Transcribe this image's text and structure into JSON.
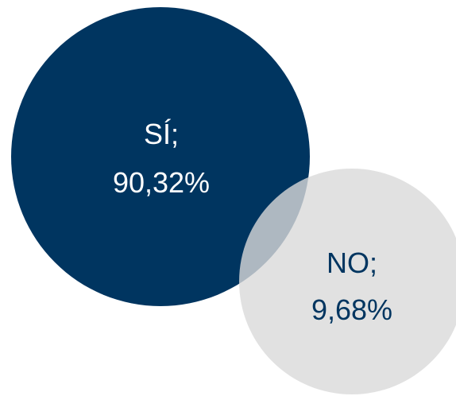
{
  "chart_data": {
    "type": "bubble",
    "title": "",
    "series": [
      {
        "name": "SÍ",
        "value_label": "90,32%",
        "value": 90.32,
        "color": "#003560",
        "text_color": "#ffffff",
        "opacity": 1
      },
      {
        "name": "NO",
        "value_label": "9,68%",
        "value": 9.68,
        "color": "#d9d9d9",
        "text_color": "#003560",
        "opacity": 0.8
      }
    ],
    "labels": {
      "si_name": "SÍ;",
      "si_value": "90,32%",
      "no_name": "NO;",
      "no_value": "9,68%"
    }
  }
}
